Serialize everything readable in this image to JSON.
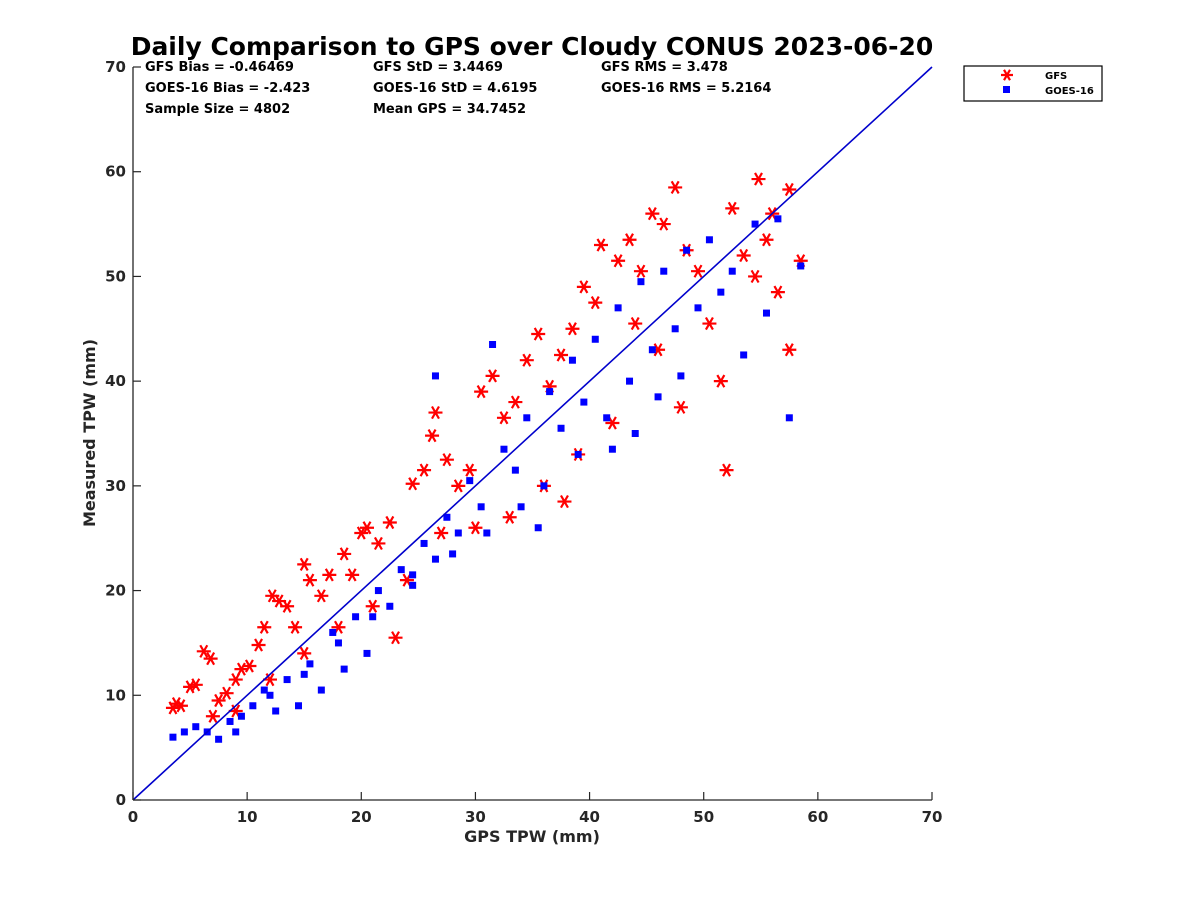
{
  "chart_data": {
    "type": "scatter",
    "title": "Daily Comparison to GPS over Cloudy CONUS 2023-06-20",
    "xlabel": "GPS TPW (mm)",
    "ylabel": "Measured TPW (mm)",
    "xlim": [
      0,
      70
    ],
    "ylim": [
      0,
      70
    ],
    "xticks": [
      "0",
      "10",
      "20",
      "30",
      "40",
      "50",
      "60",
      "70"
    ],
    "yticks": [
      "0",
      "10",
      "20",
      "30",
      "40",
      "50",
      "60",
      "70"
    ],
    "grid": false,
    "legend_position": "outside-top-right",
    "stats": [
      "GFS Bias = -0.46469",
      "GFS StD = 3.4469",
      "GFS RMS = 3.478",
      "GOES-16 Bias = -2.423",
      "GOES-16 StD = 4.6195",
      "GOES-16 RMS = 5.2164",
      "Sample Size = 4802",
      "Mean GPS = 34.7452"
    ],
    "reference_line": {
      "x": [
        0,
        70
      ],
      "y": [
        0,
        70
      ],
      "color": "#0000cc"
    },
    "series": [
      {
        "name": "GFS",
        "marker": "asterisk",
        "color": "#ff0000",
        "points": [
          [
            3.5,
            8.8
          ],
          [
            3.8,
            9.2
          ],
          [
            4.2,
            9.0
          ],
          [
            5.0,
            10.8
          ],
          [
            5.5,
            11.0
          ],
          [
            6.2,
            14.2
          ],
          [
            6.8,
            13.5
          ],
          [
            7.5,
            9.5
          ],
          [
            8.2,
            10.2
          ],
          [
            9.0,
            11.5
          ],
          [
            9.5,
            12.5
          ],
          [
            10.2,
            12.8
          ],
          [
            11.0,
            14.8
          ],
          [
            11.5,
            16.5
          ],
          [
            12.2,
            19.5
          ],
          [
            12.8,
            19.0
          ],
          [
            13.5,
            18.5
          ],
          [
            14.2,
            16.5
          ],
          [
            15.0,
            22.5
          ],
          [
            15.5,
            21.0
          ],
          [
            16.5,
            19.5
          ],
          [
            17.2,
            21.5
          ],
          [
            18.5,
            23.5
          ],
          [
            19.2,
            21.5
          ],
          [
            20.0,
            25.5
          ],
          [
            20.5,
            26.0
          ],
          [
            21.5,
            24.5
          ],
          [
            22.5,
            26.5
          ],
          [
            23.0,
            15.5
          ],
          [
            24.5,
            30.2
          ],
          [
            25.5,
            31.5
          ],
          [
            26.2,
            34.8
          ],
          [
            26.5,
            37.0
          ],
          [
            27.5,
            32.5
          ],
          [
            28.5,
            30.0
          ],
          [
            29.5,
            31.5
          ],
          [
            30.5,
            39.0
          ],
          [
            31.5,
            40.5
          ],
          [
            32.5,
            36.5
          ],
          [
            33.5,
            38.0
          ],
          [
            34.5,
            42.0
          ],
          [
            35.5,
            44.5
          ],
          [
            36.5,
            39.5
          ],
          [
            37.5,
            42.5
          ],
          [
            37.8,
            28.5
          ],
          [
            38.5,
            45.0
          ],
          [
            39.5,
            49.0
          ],
          [
            40.5,
            47.5
          ],
          [
            41.0,
            53.0
          ],
          [
            42.5,
            51.5
          ],
          [
            43.5,
            53.5
          ],
          [
            44.5,
            50.5
          ],
          [
            45.5,
            56.0
          ],
          [
            46.5,
            55.0
          ],
          [
            47.5,
            58.5
          ],
          [
            48.5,
            52.5
          ],
          [
            49.5,
            50.5
          ],
          [
            50.5,
            45.5
          ],
          [
            51.5,
            40.0
          ],
          [
            52.0,
            31.5
          ],
          [
            52.5,
            56.5
          ],
          [
            53.5,
            52.0
          ],
          [
            54.5,
            50.0
          ],
          [
            54.8,
            59.3
          ],
          [
            55.5,
            53.5
          ],
          [
            56.0,
            56.0
          ],
          [
            56.5,
            48.5
          ],
          [
            57.5,
            58.3
          ],
          [
            57.5,
            43.0
          ],
          [
            58.5,
            51.5
          ],
          [
            48.0,
            37.5
          ],
          [
            46.0,
            43.0
          ],
          [
            44.0,
            45.5
          ],
          [
            42.0,
            36.0
          ],
          [
            39.0,
            33.0
          ],
          [
            36.0,
            30.0
          ],
          [
            33.0,
            27.0
          ],
          [
            30.0,
            26.0
          ],
          [
            27.0,
            25.5
          ],
          [
            24.0,
            21.0
          ],
          [
            21.0,
            18.5
          ],
          [
            18.0,
            16.5
          ],
          [
            15.0,
            14.0
          ],
          [
            12.0,
            11.5
          ],
          [
            9.0,
            8.5
          ],
          [
            7.0,
            8.0
          ]
        ]
      },
      {
        "name": "GOES-16",
        "marker": "square",
        "color": "#0000ff",
        "points": [
          [
            3.5,
            6.0
          ],
          [
            4.5,
            6.5
          ],
          [
            5.5,
            7.0
          ],
          [
            6.5,
            6.5
          ],
          [
            7.5,
            5.8
          ],
          [
            8.5,
            7.5
          ],
          [
            9.5,
            8.0
          ],
          [
            10.5,
            9.0
          ],
          [
            11.5,
            10.5
          ],
          [
            12.5,
            8.5
          ],
          [
            13.5,
            11.5
          ],
          [
            14.5,
            9.0
          ],
          [
            15.5,
            13.0
          ],
          [
            16.5,
            10.5
          ],
          [
            17.5,
            16.0
          ],
          [
            18.5,
            12.5
          ],
          [
            19.5,
            17.5
          ],
          [
            20.5,
            14.0
          ],
          [
            21.5,
            20.0
          ],
          [
            22.5,
            18.5
          ],
          [
            23.5,
            22.0
          ],
          [
            24.5,
            20.5
          ],
          [
            25.5,
            24.5
          ],
          [
            26.5,
            23.0
          ],
          [
            26.5,
            40.5
          ],
          [
            27.5,
            27.0
          ],
          [
            28.5,
            25.5
          ],
          [
            29.5,
            30.5
          ],
          [
            30.5,
            28.0
          ],
          [
            31.5,
            43.5
          ],
          [
            32.5,
            33.5
          ],
          [
            33.5,
            31.5
          ],
          [
            34.5,
            36.5
          ],
          [
            35.5,
            26.0
          ],
          [
            36.5,
            39.0
          ],
          [
            37.5,
            35.5
          ],
          [
            38.5,
            42.0
          ],
          [
            39.5,
            38.0
          ],
          [
            40.5,
            44.0
          ],
          [
            41.5,
            36.5
          ],
          [
            42.5,
            47.0
          ],
          [
            43.5,
            40.0
          ],
          [
            44.5,
            49.5
          ],
          [
            45.5,
            43.0
          ],
          [
            46.5,
            50.5
          ],
          [
            47.5,
            45.0
          ],
          [
            48.5,
            52.5
          ],
          [
            49.5,
            47.0
          ],
          [
            50.5,
            53.5
          ],
          [
            51.5,
            48.5
          ],
          [
            52.5,
            50.5
          ],
          [
            53.5,
            42.5
          ],
          [
            54.5,
            55.0
          ],
          [
            55.5,
            46.5
          ],
          [
            56.5,
            55.5
          ],
          [
            57.5,
            36.5
          ],
          [
            58.5,
            51.0
          ],
          [
            42.0,
            33.5
          ],
          [
            44.0,
            35.0
          ],
          [
            46.0,
            38.5
          ],
          [
            48.0,
            40.5
          ],
          [
            39.0,
            33.0
          ],
          [
            36.0,
            30.0
          ],
          [
            34.0,
            28.0
          ],
          [
            31.0,
            25.5
          ],
          [
            28.0,
            23.5
          ],
          [
            24.5,
            21.5
          ],
          [
            21.0,
            17.5
          ],
          [
            18.0,
            15.0
          ],
          [
            15.0,
            12.0
          ],
          [
            12.0,
            10.0
          ],
          [
            9.0,
            6.5
          ]
        ]
      }
    ]
  }
}
